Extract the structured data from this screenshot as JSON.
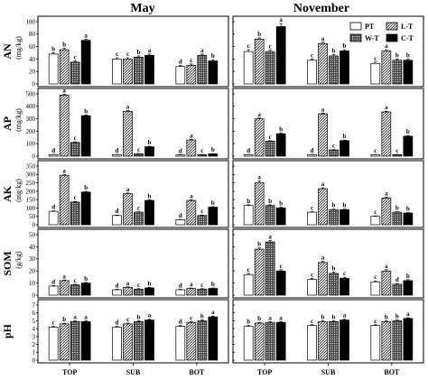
{
  "columns": [
    "May",
    "November"
  ],
  "legend": [
    {
      "code": "PT",
      "fill": "white"
    },
    {
      "code": "L-T",
      "fill": "hatch"
    },
    {
      "code": "W-T",
      "fill": "dots"
    },
    {
      "code": "C-T",
      "fill": "black"
    }
  ],
  "chart_data": {
    "type": "bar",
    "categories": [
      "TOP",
      "SUB",
      "BOT"
    ],
    "series_names": [
      "PT",
      "L-T",
      "W-T",
      "C-T"
    ],
    "panels": [
      {
        "label": "AN",
        "unit": "(mg/kg)",
        "ylim": [
          0,
          100
        ],
        "yticks": [
          0,
          20,
          40,
          60,
          80,
          100
        ],
        "data": [
          {
            "values": [
              [
                48,
                55,
                35,
                70
              ],
              [
                40,
                40,
                43,
                46
              ],
              [
                28,
                30,
                46,
                37
              ]
            ],
            "errors": [
              [
                2,
                2,
                2,
                2
              ],
              [
                2,
                2,
                2,
                2
              ],
              [
                2,
                2,
                2,
                2
              ]
            ],
            "letters": [
              [
                "b",
                "b",
                "c",
                "a"
              ],
              [
                "c",
                "c",
                "b",
                "a"
              ],
              [
                "d",
                "c",
                "a",
                "b"
              ]
            ]
          },
          {
            "values": [
              [
                52,
                72,
                52,
                92
              ],
              [
                38,
                65,
                45,
                53
              ],
              [
                33,
                53,
                38,
                38
              ]
            ],
            "errors": [
              [
                3,
                2,
                2,
                5
              ],
              [
                2,
                2,
                2,
                2
              ],
              [
                2,
                2,
                2,
                2
              ]
            ],
            "letters": [
              [
                "c",
                "b",
                "c",
                "a"
              ],
              [
                "c",
                "a",
                "b",
                "b"
              ],
              [
                "c",
                "a",
                "b",
                "b"
              ]
            ]
          }
        ]
      },
      {
        "label": "AP",
        "unit": "(mg/kg)",
        "ylim": [
          0,
          500
        ],
        "yticks": [
          0,
          100,
          200,
          300,
          400,
          500
        ],
        "data": [
          {
            "values": [
              [
                12,
                490,
                110,
                325
              ],
              [
                12,
                360,
                20,
                75
              ],
              [
                10,
                130,
                12,
                18
              ]
            ],
            "errors": [
              [
                2,
                6,
                5,
                6
              ],
              [
                2,
                6,
                2,
                4
              ],
              [
                2,
                5,
                2,
                2
              ]
            ],
            "letters": [
              [
                "d",
                "a",
                "c",
                "b"
              ],
              [
                "d",
                "a",
                "c",
                "b"
              ],
              [
                "d",
                "a",
                "c",
                "b"
              ]
            ]
          },
          {
            "values": [
              [
                12,
                300,
                120,
                180
              ],
              [
                12,
                340,
                50,
                125
              ],
              [
                12,
                355,
                12,
                160
              ]
            ],
            "errors": [
              [
                2,
                6,
                4,
                5
              ],
              [
                2,
                6,
                3,
                4
              ],
              [
                2,
                6,
                2,
                5
              ]
            ],
            "letters": [
              [
                "d",
                "a",
                "c",
                "b"
              ],
              [
                "d",
                "a",
                "c",
                "b"
              ],
              [
                "c",
                "a",
                "c",
                "b"
              ]
            ]
          }
        ]
      },
      {
        "label": "AK",
        "unit": "(mg/kg)",
        "ylim": [
          0,
          350
        ],
        "yticks": [
          0,
          50,
          100,
          150,
          200,
          250,
          300,
          350
        ],
        "data": [
          {
            "values": [
              [
                80,
                295,
                135,
                195
              ],
              [
                55,
                185,
                75,
                145
              ],
              [
                30,
                145,
                55,
                105
              ]
            ],
            "errors": [
              [
                3,
                5,
                4,
                4
              ],
              [
                3,
                4,
                3,
                4
              ],
              [
                2,
                4,
                3,
                3
              ]
            ],
            "letters": [
              [
                "d",
                "a",
                "c",
                "b"
              ],
              [
                "d",
                "a",
                "c",
                "b"
              ],
              [
                "d",
                "a",
                "c",
                "b"
              ]
            ]
          },
          {
            "values": [
              [
                115,
                250,
                115,
                100
              ],
              [
                75,
                215,
                90,
                90
              ],
              [
                50,
                160,
                75,
                70
              ]
            ],
            "errors": [
              [
                4,
                12,
                4,
                4
              ],
              [
                3,
                5,
                3,
                3
              ],
              [
                3,
                4,
                3,
                3
              ]
            ],
            "letters": [
              [
                "b",
                "a",
                "b",
                "b"
              ],
              [
                "c",
                "a",
                "b",
                "b"
              ],
              [
                "c",
                "a",
                "b",
                "b"
              ]
            ]
          }
        ]
      },
      {
        "label": "SOM",
        "unit": "(g/kg)",
        "ylim": [
          0,
          50
        ],
        "yticks": [
          0,
          10,
          20,
          30,
          40,
          50
        ],
        "data": [
          {
            "values": [
              [
                7.5,
                12,
                8.5,
                10
              ],
              [
                4.5,
                6.5,
                5,
                6
              ],
              [
                4.5,
                5.5,
                5,
                5.5
              ]
            ],
            "errors": [
              [
                0.5,
                0.5,
                0.5,
                0.5
              ],
              [
                0.4,
                0.4,
                0.4,
                0.4
              ],
              [
                0.4,
                0.4,
                0.4,
                0.4
              ]
            ],
            "letters": [
              [
                "d",
                "a",
                "c",
                "b"
              ],
              [
                "d",
                "a",
                "c",
                "b"
              ],
              [
                "d",
                "a",
                "c",
                "b"
              ]
            ]
          },
          {
            "values": [
              [
                17,
                38,
                44,
                20
              ],
              [
                13,
                27,
                18,
                14
              ],
              [
                11,
                20,
                9,
                12
              ]
            ],
            "errors": [
              [
                1,
                1,
                1.2,
                1
              ],
              [
                0.8,
                1,
                1.2,
                0.8
              ],
              [
                0.8,
                1,
                0.6,
                0.8
              ]
            ],
            "letters": [
              [
                "c",
                "b",
                "a",
                "c"
              ],
              [
                "c",
                "a",
                "b",
                "c"
              ],
              [
                "c",
                "a",
                "d",
                "b"
              ]
            ]
          }
        ]
      },
      {
        "label": "pH",
        "unit": "",
        "ylim": [
          0,
          7
        ],
        "yticks": [
          0,
          1,
          2,
          3,
          4,
          5,
          6,
          7
        ],
        "data": [
          {
            "values": [
              [
                4.2,
                4.6,
                4.9,
                4.9
              ],
              [
                4.2,
                4.6,
                4.9,
                5.1
              ],
              [
                4.3,
                4.8,
                5.0,
                5.5
              ]
            ],
            "errors": [
              [
                0.1,
                0.1,
                0.1,
                0.1
              ],
              [
                0.1,
                0.1,
                0.1,
                0.1
              ],
              [
                0.1,
                0.1,
                0.1,
                0.1
              ]
            ],
            "letters": [
              [
                "c",
                "b",
                "a",
                "a"
              ],
              [
                "d",
                "c",
                "b",
                "a"
              ],
              [
                "d",
                "c",
                "b",
                "a"
              ]
            ]
          },
          {
            "values": [
              [
                4.3,
                4.7,
                4.8,
                4.8
              ],
              [
                4.4,
                4.9,
                4.9,
                5.1
              ],
              [
                4.4,
                4.9,
                5.0,
                5.3
              ]
            ],
            "errors": [
              [
                0.1,
                0.1,
                0.1,
                0.1
              ],
              [
                0.1,
                0.1,
                0.1,
                0.1
              ],
              [
                0.1,
                0.1,
                0.1,
                0.1
              ]
            ],
            "letters": [
              [
                "b",
                "b",
                "a",
                "a"
              ],
              [
                "c",
                "b",
                "b",
                "a"
              ],
              [
                "c",
                "b",
                "b",
                "a"
              ]
            ]
          }
        ]
      }
    ]
  }
}
